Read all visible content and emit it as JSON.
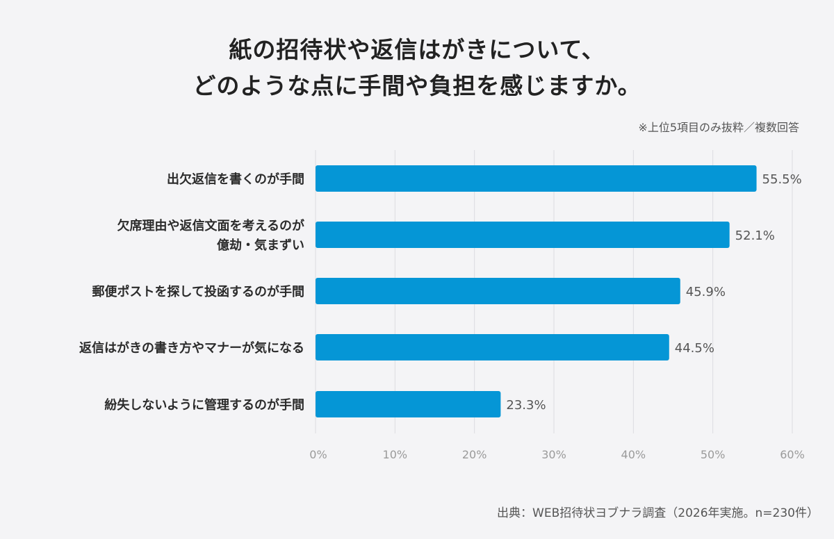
{
  "title_lines": [
    "紙の招待状や返信はがきについて、",
    "どのような点に手間や負担を感じますか。"
  ],
  "note": "※上位5項目のみ抜粋／複数回答",
  "source": "出典：WEB招待状ヨブナラ調査（2026年実施。n=230件）",
  "colors": {
    "bar": "#0596d6",
    "grid": "#dcdce0",
    "background": "#f4f4f6"
  },
  "chart_data": {
    "type": "bar",
    "orientation": "horizontal",
    "categories": [
      [
        "出欠返信を書くのが手間"
      ],
      [
        "欠席理由や返信文面を考えるのが",
        "億劫・気まずい"
      ],
      [
        "郵便ポストを探して投函するのが手間"
      ],
      [
        "返信はがきの書き方やマナーが気になる"
      ],
      [
        "紛失しないように管理するのが手間"
      ]
    ],
    "values": [
      55.5,
      52.1,
      45.9,
      44.5,
      23.3
    ],
    "value_labels": [
      "55.5%",
      "52.1%",
      "45.9%",
      "44.5%",
      "23.3%"
    ],
    "xlim": [
      0,
      60
    ],
    "ticks": [
      0,
      10,
      20,
      30,
      40,
      50,
      60
    ],
    "tick_labels": [
      "0%",
      "10%",
      "20%",
      "30%",
      "40%",
      "50%",
      "60%"
    ],
    "grid": true
  }
}
